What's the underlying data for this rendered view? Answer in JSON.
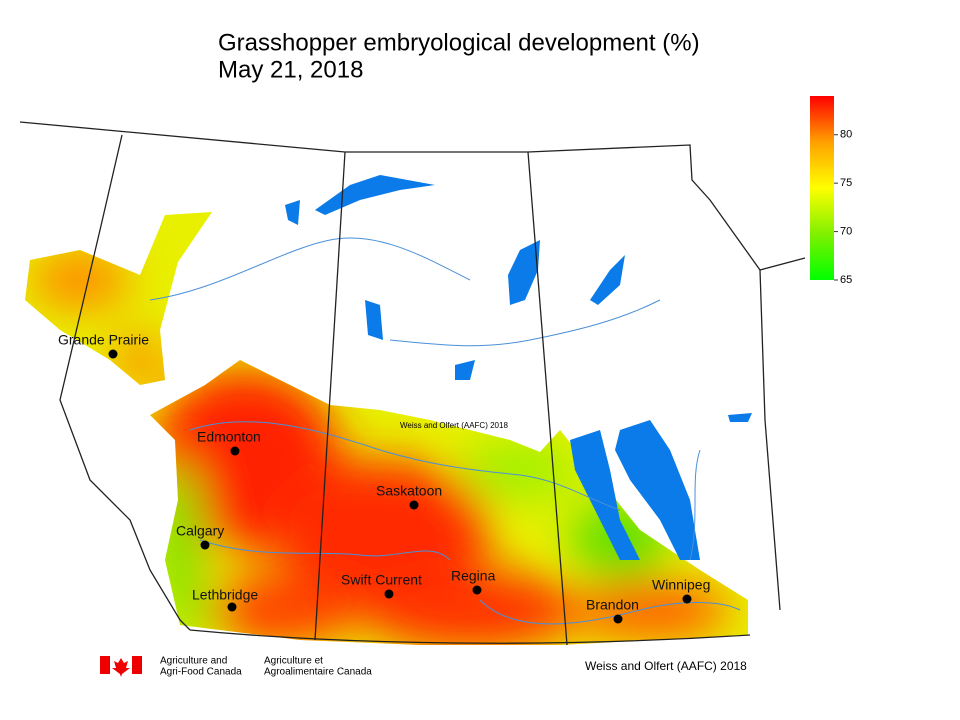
{
  "title": [
    "Grasshopper embryological development (%)",
    "May 21, 2018"
  ],
  "legend": {
    "range": [
      65,
      84
    ],
    "ticks": [
      65,
      70,
      75,
      80
    ],
    "colors": [
      "#00ff00",
      "#80f000",
      "#ffff00",
      "#ffa000",
      "#ff0000"
    ]
  },
  "cities": [
    "Grande Prairie",
    "Edmonton",
    "Saskatoon",
    "Calgary",
    "Swift Current",
    "Regina",
    "Lethbridge",
    "Brandon",
    "Winnipeg"
  ],
  "credits": {
    "map": "Weiss and Olfert (AAFC) 2018",
    "footer": "Weiss and Olfert (AAFC) 2018"
  },
  "logo": {
    "english": [
      "Agriculture and",
      "Agri-Food Canada"
    ],
    "french": [
      "Agriculture et",
      "Agroalimentaire Canada"
    ]
  }
}
